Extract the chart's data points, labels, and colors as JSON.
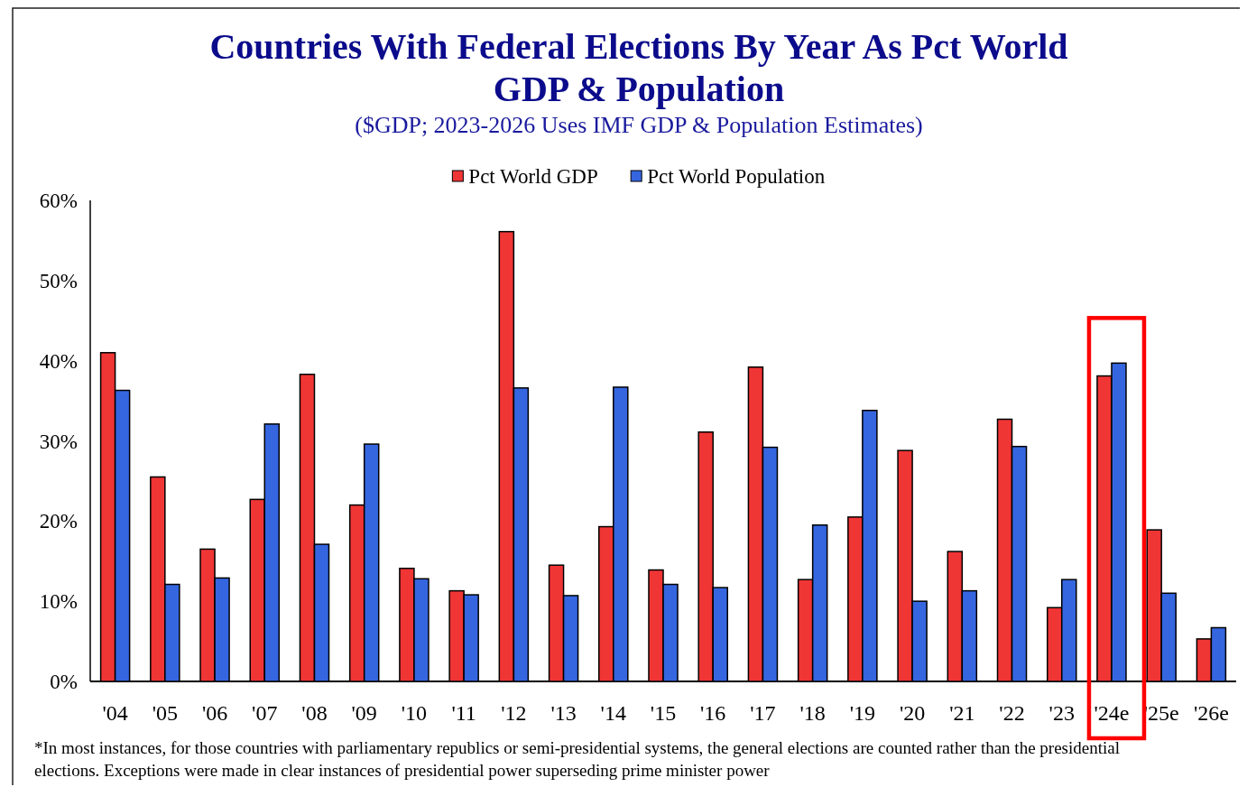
{
  "chart_data": {
    "type": "bar",
    "title": "Countries With Federal Elections By Year As Pct World GDP & Population",
    "subtitle": "($GDP; 2023-2026 Uses IMF GDP & Population Estimates)",
    "categories": [
      "'04",
      "'05",
      "'06",
      "'07",
      "'08",
      "'09",
      "'10",
      "'11",
      "'12",
      "'13",
      "'14",
      "'15",
      "'16",
      "'17",
      "'18",
      "'19",
      "'20",
      "'21",
      "'22",
      "'23",
      "'24e",
      "'25e",
      "'26e"
    ],
    "series": [
      {
        "name": "Pct World GDP",
        "color": "#f03535",
        "values": [
          41.0,
          25.5,
          16.5,
          22.7,
          38.3,
          22.0,
          14.1,
          11.3,
          56.1,
          14.5,
          19.3,
          13.9,
          31.1,
          39.2,
          12.7,
          20.5,
          28.8,
          16.2,
          32.7,
          9.2,
          38.1,
          18.9,
          5.3
        ]
      },
      {
        "name": "Pct World Population",
        "color": "#3566e0",
        "values": [
          36.3,
          12.1,
          12.9,
          32.1,
          17.1,
          29.6,
          12.8,
          10.8,
          36.6,
          10.7,
          36.7,
          12.1,
          11.7,
          29.2,
          19.5,
          33.8,
          10.0,
          11.3,
          29.3,
          12.7,
          39.7,
          11.0,
          6.7
        ]
      }
    ],
    "ylim": [
      0,
      60
    ],
    "yticks": [
      {
        "value": 0,
        "label": "0%"
      },
      {
        "value": 10,
        "label": "10%"
      },
      {
        "value": 20,
        "label": "20%"
      },
      {
        "value": 30,
        "label": "30%"
      },
      {
        "value": 40,
        "label": "40%"
      },
      {
        "value": 50,
        "label": "50%"
      },
      {
        "value": 60,
        "label": "60%"
      }
    ],
    "legend": "top",
    "annotations": [
      "*In most instances, for those countries with parliamentary republics or semi-presidential systems, the general elections are counted rather than the presidential elections. Exceptions were made in clear instances of presidential power superseding prime minister power"
    ]
  }
}
